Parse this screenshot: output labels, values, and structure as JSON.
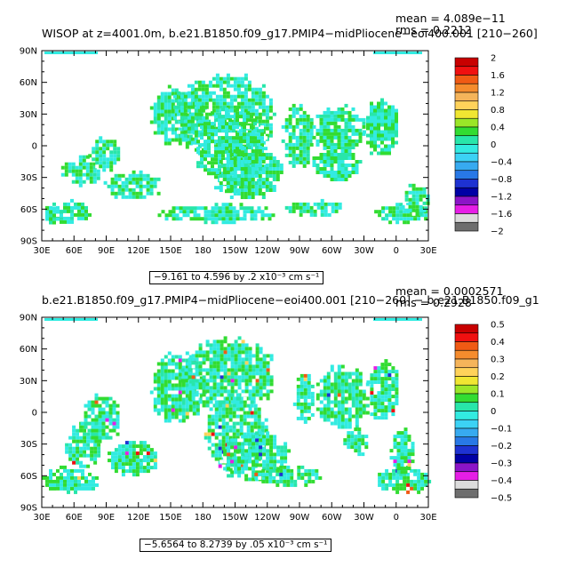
{
  "panels": [
    {
      "title": "WISOP at z=4001.0m, b.e21.B1850.f09_g17.PMIP4−midPliocene−eoi400.001 [210−260]",
      "mean": "mean = 4.089e−11",
      "rms": "rms = 0.2212",
      "range": "−9.161 to 4.596 by .2 x10⁻³ cm s⁻¹",
      "colorbar": {
        "labels": [
          "2",
          "1.6",
          "1.2",
          "0.8",
          "0.4",
          "0",
          "−0.4",
          "−0.8",
          "−1.2",
          "−1.6",
          "−2"
        ],
        "colors": [
          "#c80000",
          "#f01010",
          "#f05a14",
          "#f58c2d",
          "#f5b45a",
          "#ffd25a",
          "#f0e632",
          "#9be628",
          "#32dc32",
          "#28e6aa",
          "#32ebe1",
          "#3cd2f5",
          "#37aaf0",
          "#2878e6",
          "#1e32d2",
          "#0000a5",
          "#8c14c8",
          "#e61ee6",
          "#dcdcdc",
          "#6e6e6e"
        ]
      }
    },
    {
      "title": "b.e21.B1850.f09_g17.PMIP4−midPliocene−eoi400.001 [210−260] − b.e21.B1850.f09_g1",
      "mean": "mean = 0.0002571",
      "rms": "rms = 0.2928",
      "range": "−5.6564 to 8.2739 by .05 x10⁻³ cm s⁻¹",
      "colorbar": {
        "labels": [
          "0.5",
          "0.4",
          "0.3",
          "0.2",
          "0.1",
          "0",
          "−0.1",
          "−0.2",
          "−0.3",
          "−0.4",
          "−0.5"
        ],
        "colors": [
          "#c80000",
          "#f01010",
          "#f05a14",
          "#f58c2d",
          "#f5b45a",
          "#ffd25a",
          "#f0e632",
          "#9be628",
          "#32dc32",
          "#28e6aa",
          "#32ebe1",
          "#3cd2f5",
          "#37aaf0",
          "#2878e6",
          "#1e32d2",
          "#0000a5",
          "#8c14c8",
          "#e61ee6",
          "#dcdcdc",
          "#6e6e6e"
        ]
      }
    }
  ],
  "axes": {
    "lat_labels": [
      "90N",
      "60N",
      "30N",
      "0",
      "30S",
      "60S",
      "90S"
    ],
    "lon_labels": [
      "30E",
      "60E",
      "90E",
      "120E",
      "150E",
      "180",
      "150W",
      "120W",
      "90W",
      "60W",
      "30W",
      "0",
      "30E"
    ]
  },
  "field_colors": {
    "dominant": "#32ebe1",
    "secondary": "#32dc32",
    "tertiary": "#28e6aa"
  }
}
